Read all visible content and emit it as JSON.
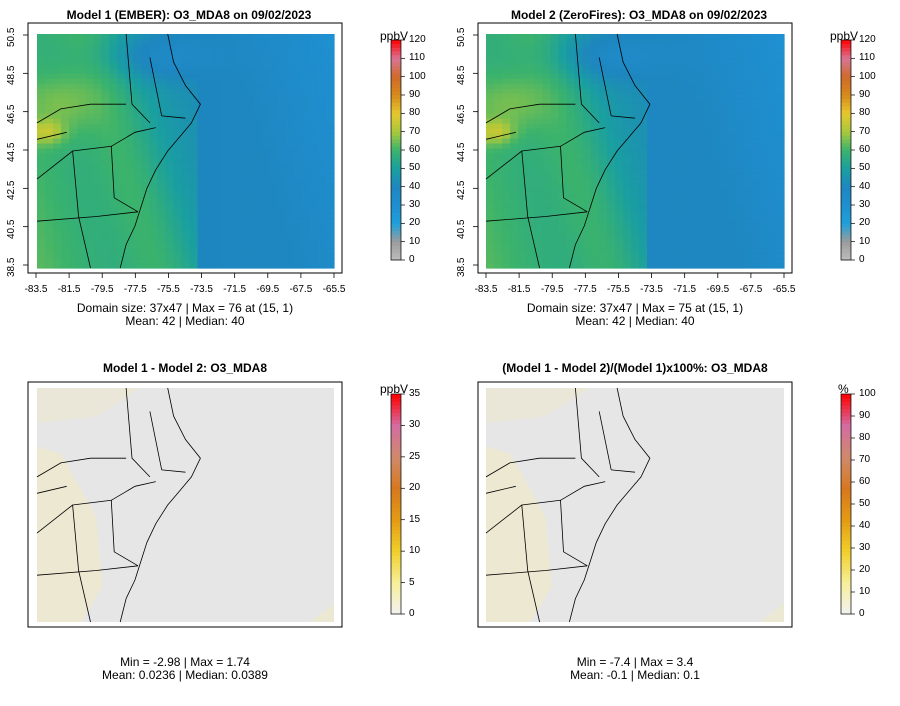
{
  "panels": [
    {
      "id": "p1",
      "title": "Model 1 (EMBER): O3_MDA8 on 09/02/2023",
      "footer_line1": "Domain size: 37x47 | Max = 76 at (15, 1)",
      "footer_line2": "Mean: 42 |  Median: 40",
      "unit": "ppbV",
      "kind": "conc",
      "colorbar_ticks": [
        "0",
        "10",
        "20",
        "30",
        "40",
        "50",
        "60",
        "70",
        "80",
        "90",
        "100",
        "110",
        "120"
      ],
      "colorbar_range": [
        0,
        120
      ],
      "x_ticks": [
        "-83.5",
        "-81.5",
        "-79.5",
        "-77.5",
        "-75.5",
        "-73.5",
        "-71.5",
        "-69.5",
        "-67.5",
        "-65.5"
      ],
      "y_ticks": [
        "38.5",
        "40.5",
        "42.5",
        "44.5",
        "46.5",
        "48.5",
        "50.5"
      ]
    },
    {
      "id": "p2",
      "title": "Model 2 (ZeroFires): O3_MDA8 on 09/02/2023",
      "footer_line1": "Domain size: 37x47 | Max = 75 at (15, 1)",
      "footer_line2": "Mean: 42 |  Median: 40",
      "unit": "ppbV",
      "kind": "conc",
      "colorbar_ticks": [
        "0",
        "10",
        "20",
        "30",
        "40",
        "50",
        "60",
        "70",
        "80",
        "90",
        "100",
        "110",
        "120"
      ],
      "colorbar_range": [
        0,
        120
      ],
      "x_ticks": [
        "-83.5",
        "-81.5",
        "-79.5",
        "-77.5",
        "-75.5",
        "-73.5",
        "-71.5",
        "-69.5",
        "-67.5",
        "-65.5"
      ],
      "y_ticks": [
        "38.5",
        "40.5",
        "42.5",
        "44.5",
        "46.5",
        "48.5",
        "50.5"
      ]
    },
    {
      "id": "p3",
      "title": "Model 1 - Model 2: O3_MDA8",
      "footer_line1": "Min = -2.98 | Max = 1.74",
      "footer_line2": "Mean: 0.0236 |  Median: 0.0389",
      "unit": "ppbV",
      "kind": "diff",
      "colorbar_ticks": [
        "0",
        "5",
        "10",
        "15",
        "20",
        "25",
        "30",
        "35"
      ],
      "colorbar_range": [
        0,
        35
      ],
      "x_ticks": [],
      "y_ticks": []
    },
    {
      "id": "p4",
      "title": "(Model 1 - Model 2)/(Model 1)x100%: O3_MDA8",
      "footer_line1": "Min = -7.4 | Max = 3.4",
      "footer_line2": "Mean: -0.1 |  Median: 0.1",
      "unit": "%",
      "kind": "diff",
      "colorbar_ticks": [
        "0",
        "10",
        "20",
        "30",
        "40",
        "50",
        "60",
        "70",
        "80",
        "90",
        "100"
      ],
      "colorbar_range": [
        0,
        100
      ],
      "x_ticks": [],
      "y_ticks": []
    }
  ],
  "colors": {
    "diff_background": "#e6e6e6",
    "diff_positive": "#ece8cf",
    "conc_colorscale": [
      "#bdbdbd",
      "#9c9c9c",
      "#1ea0da",
      "#1f8fd0",
      "#1e86bf",
      "#1a9fa0",
      "#3bb36c",
      "#a8c83c",
      "#e5c82d",
      "#d78a1a",
      "#cf6a2a",
      "#d87596",
      "#ff0000"
    ],
    "diff_colorscale": [
      "#f2f2f2",
      "#f7ef9a",
      "#f1cf2a",
      "#e49b14",
      "#d7781e",
      "#cf8a6b",
      "#d46ca2",
      "#ff0000"
    ]
  }
}
